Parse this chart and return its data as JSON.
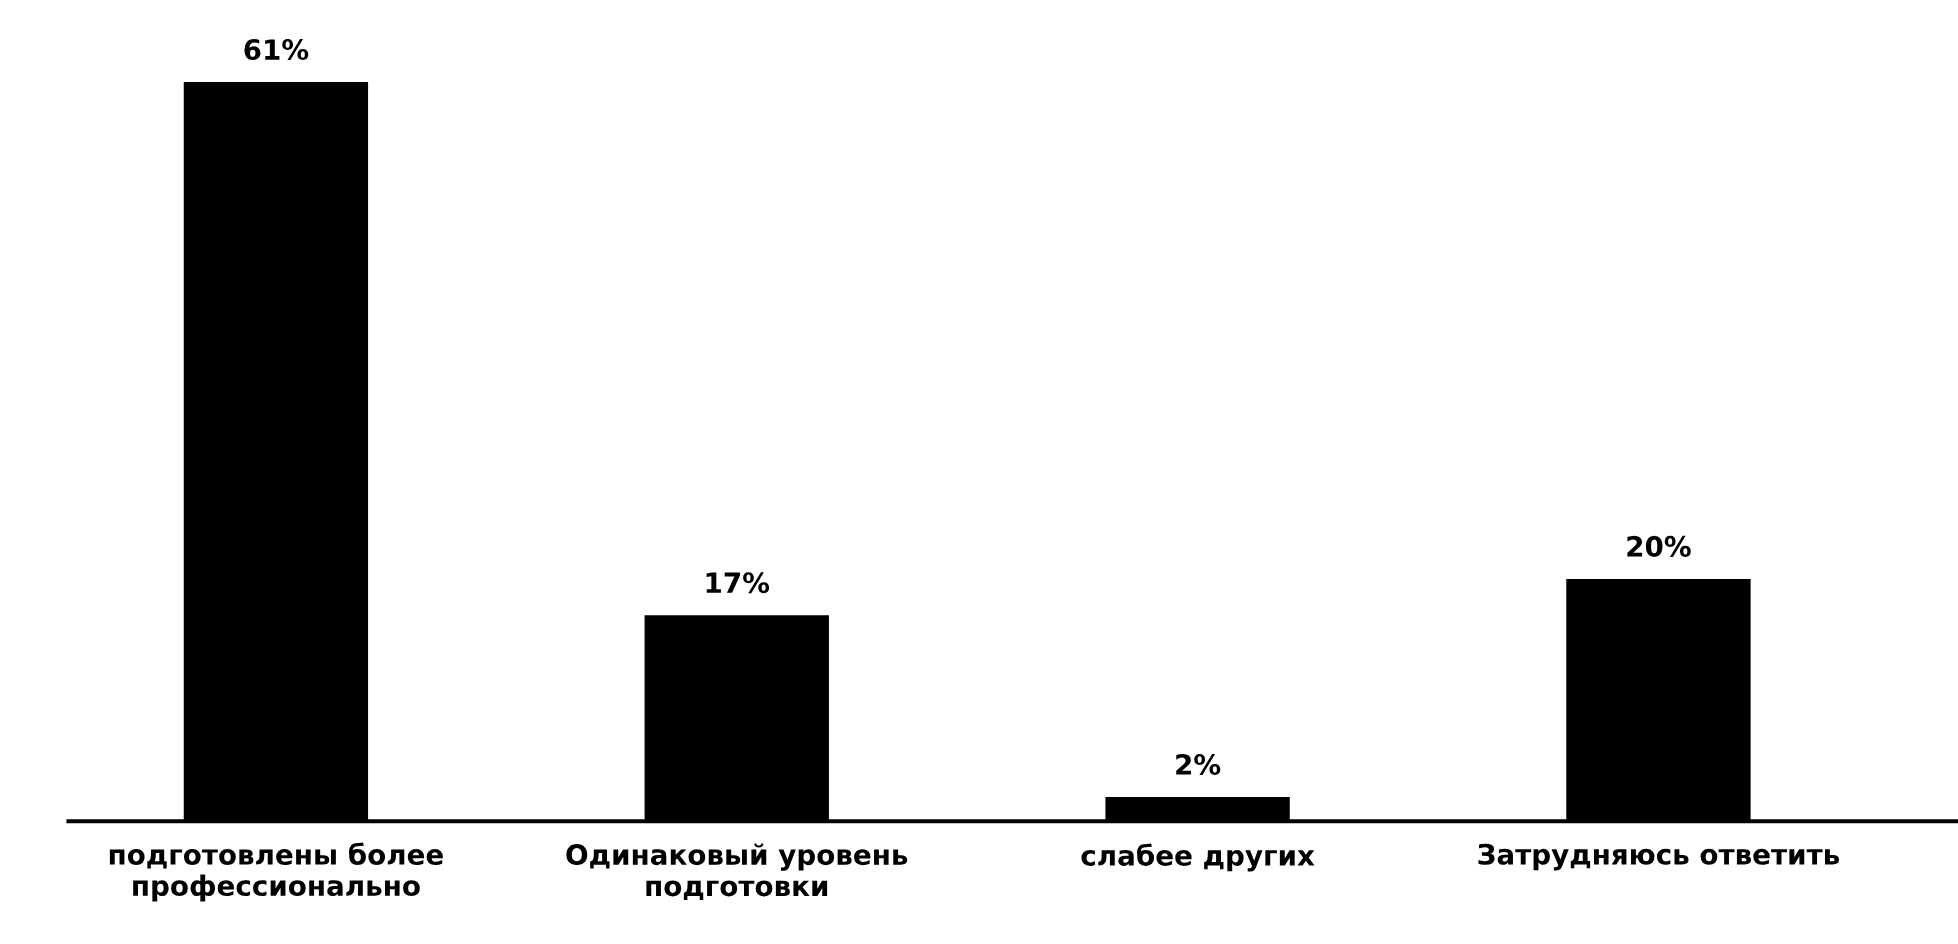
{
  "chart_data": {
    "type": "bar",
    "categories": [
      "подготовлены более\nпрофессионально",
      "Одинаковый уровень\nподготовки",
      "слабее других",
      "Затрудняюсь ответить"
    ],
    "values": [
      61,
      17,
      2,
      20
    ],
    "value_labels": [
      "61%",
      "17%",
      "2%",
      "20%"
    ],
    "color": "#000000"
  }
}
